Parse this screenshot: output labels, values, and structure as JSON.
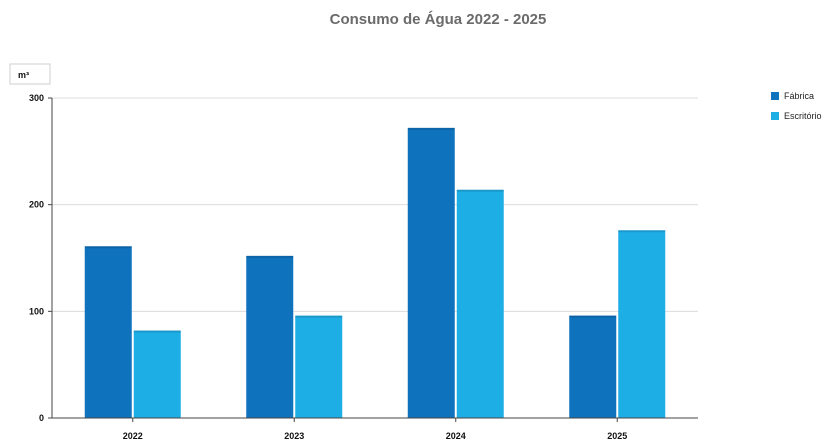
{
  "chart_data": {
    "type": "bar",
    "title": "Consumo de Água 2022 - 2025",
    "unit": "m³",
    "categories": [
      "2022",
      "2023",
      "2024",
      "2025"
    ],
    "series": [
      {
        "name": "Fábrica",
        "color": "#0e72bd",
        "values": [
          161,
          152,
          272,
          96
        ]
      },
      {
        "name": "Escritório",
        "color": "#1eaee6",
        "values": [
          82,
          96,
          214,
          176
        ]
      }
    ],
    "ylim": [
      0,
      300
    ],
    "yticks": [
      0,
      100,
      200,
      300
    ],
    "grid": true,
    "legend": "top-right"
  }
}
